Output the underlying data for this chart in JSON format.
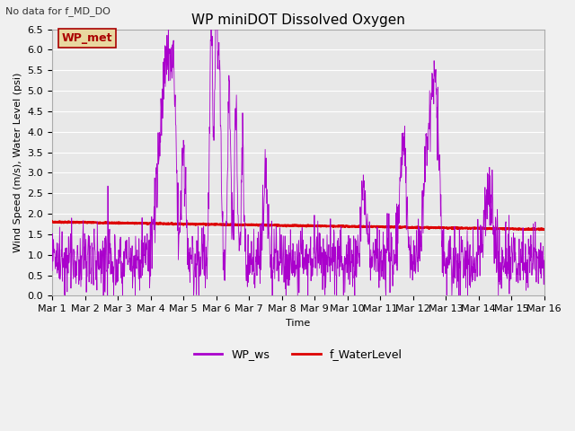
{
  "title": "WP miniDOT Dissolved Oxygen",
  "subtitle": "No data for f_MD_DO",
  "xlabel": "Time",
  "ylabel": "Wind Speed (m/s), Water Level (psi)",
  "ylim": [
    0.0,
    6.5
  ],
  "yticks": [
    0.0,
    0.5,
    1.0,
    1.5,
    2.0,
    2.5,
    3.0,
    3.5,
    4.0,
    4.5,
    5.0,
    5.5,
    6.0,
    6.5
  ],
  "xtick_labels": [
    "Mar 1",
    "Mar 2",
    "Mar 3",
    "Mar 4",
    "Mar 5",
    "Mar 6",
    "Mar 7",
    "Mar 8",
    "Mar 9",
    "Mar 10",
    "Mar 11",
    "Mar 12",
    "Mar 13",
    "Mar 14",
    "Mar 15",
    "Mar 16"
  ],
  "wp_ws_color": "#aa00cc",
  "f_wl_color": "#dd0000",
  "legend_label_ws": "WP_ws",
  "legend_label_wl": "f_WaterLevel",
  "annotation_label": "WP_met",
  "annotation_color": "#aa0000",
  "annotation_bg": "#e8d8a0",
  "annotation_border": "#aa0000",
  "plot_bg_color": "#e8e8e8",
  "grid_color": "#ffffff",
  "title_fontsize": 11,
  "label_fontsize": 8,
  "tick_fontsize": 8
}
